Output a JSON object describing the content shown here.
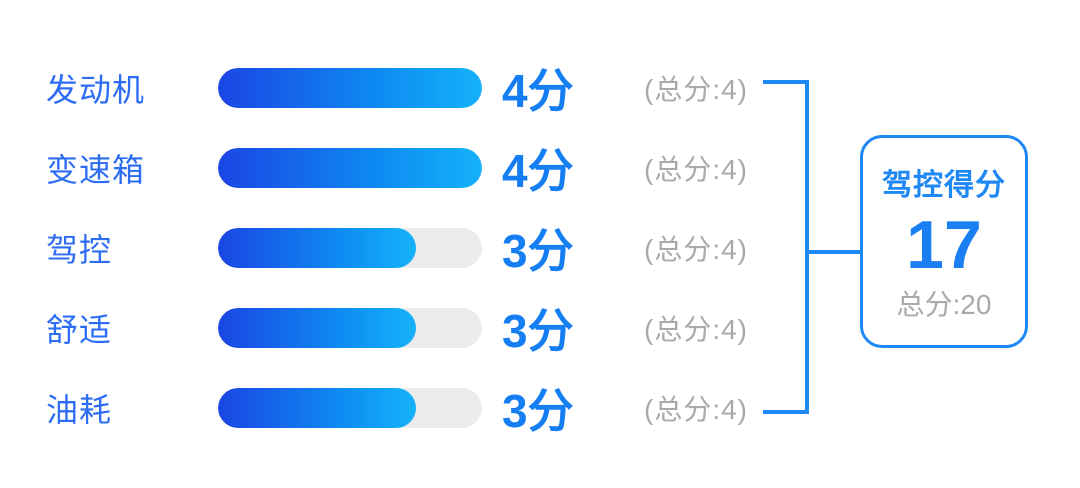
{
  "rows": [
    {
      "label": "发动机",
      "score": 4,
      "max": 4,
      "score_label": "4分",
      "total_label": "(总分:4)"
    },
    {
      "label": "变速箱",
      "score": 4,
      "max": 4,
      "score_label": "4分",
      "total_label": "(总分:4)"
    },
    {
      "label": "驾控",
      "score": 3,
      "max": 4,
      "score_label": "3分",
      "total_label": "(总分:4)"
    },
    {
      "label": "舒适",
      "score": 3,
      "max": 4,
      "score_label": "3分",
      "total_label": "(总分:4)"
    },
    {
      "label": "油耗",
      "score": 3,
      "max": 4,
      "score_label": "3分",
      "total_label": "(总分:4)"
    }
  ],
  "summary": {
    "title": "驾控得分",
    "score": "17",
    "total_label": "总分:20"
  },
  "colors": {
    "label_blue": "#2d6cf5",
    "score_blue": "#157ef3",
    "line_blue": "#1e88f5",
    "bar_gradient_start": "#1c45e4",
    "bar_gradient_end": "#15b2fa",
    "track_gray": "#ececec",
    "muted_gray": "#a9a9a9"
  },
  "chart_data": {
    "type": "bar",
    "orientation": "horizontal",
    "categories": [
      "发动机",
      "变速箱",
      "驾控",
      "舒适",
      "油耗"
    ],
    "values": [
      4,
      4,
      3,
      3,
      3
    ],
    "value_labels": [
      "4分",
      "4分",
      "3分",
      "3分",
      "3分"
    ],
    "per_category_max": 4,
    "per_category_total_label": "(总分:4)",
    "xlim": [
      0,
      4
    ],
    "grid": false,
    "legend": false,
    "summary": {
      "title": "驾控得分",
      "score": 17,
      "total": 20,
      "total_label": "总分:20"
    }
  }
}
